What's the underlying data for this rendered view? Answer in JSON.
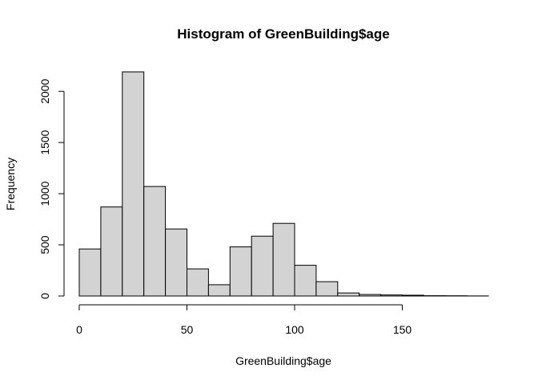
{
  "chart_data": {
    "type": "bar",
    "title": "Histogram of GreenBuilding$age",
    "xlabel": "GreenBuilding$age",
    "ylabel": "Frequency",
    "bin_edges": [
      0,
      10,
      20,
      30,
      40,
      50,
      60,
      70,
      80,
      90,
      100,
      110,
      120,
      130,
      140,
      150,
      160,
      170,
      180,
      190
    ],
    "values": [
      460,
      870,
      2190,
      1070,
      655,
      265,
      110,
      480,
      585,
      710,
      300,
      140,
      30,
      15,
      10,
      8,
      3,
      2,
      1
    ],
    "xlim": [
      0,
      190
    ],
    "ylim": [
      0,
      2190
    ],
    "x_ticks": [
      0,
      50,
      100,
      150
    ],
    "y_ticks": [
      0,
      500,
      1000,
      1500,
      2000
    ],
    "colors": {
      "bar_fill": "#d3d3d3",
      "bar_stroke": "#000000"
    }
  }
}
